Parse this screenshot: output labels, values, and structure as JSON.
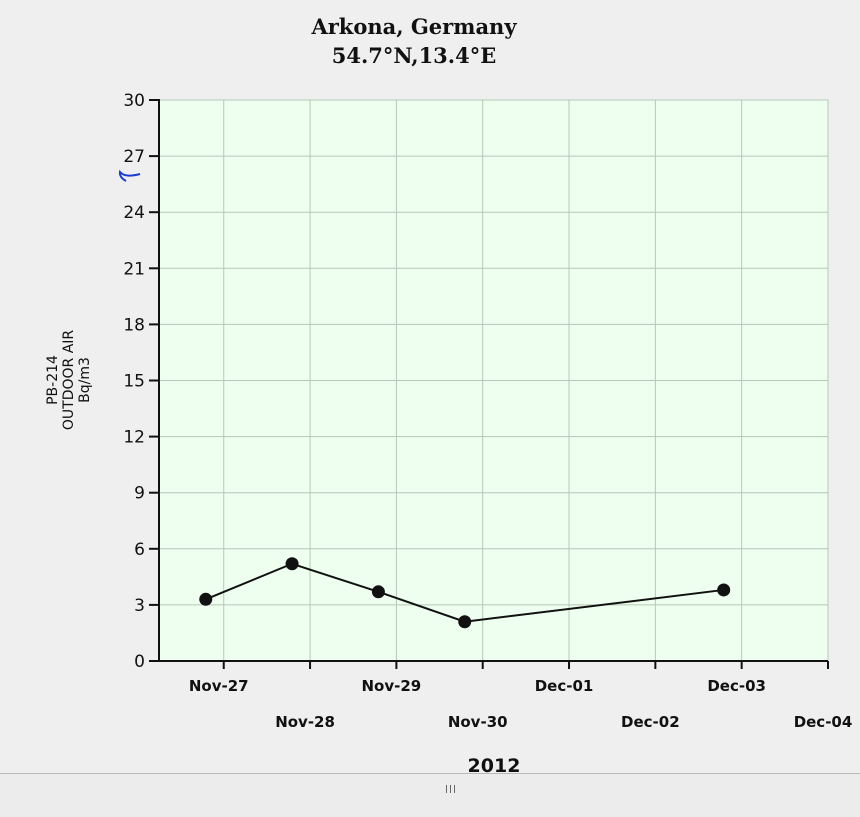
{
  "chart_data": {
    "type": "line",
    "title": "Arkona, Germany",
    "subtitle": "54.7°N,13.4°E",
    "ylabel_lines": [
      "PB-214",
      "OUTDOOR AIR",
      "Bq/m3"
    ],
    "xlabel": "2012",
    "ylim": [
      0,
      30
    ],
    "yticks": [
      0,
      3,
      6,
      9,
      12,
      15,
      18,
      21,
      24,
      27,
      30
    ],
    "xlim": [
      "2012-11-26 06:00",
      "2012-12-04"
    ],
    "xticks": [
      "Nov-27",
      "Nov-28",
      "Nov-29",
      "Nov-30",
      "Dec-01",
      "Dec-02",
      "Dec-03",
      "Dec-04"
    ],
    "grid": true,
    "plot_background": "#efffef",
    "grid_color": "#b4c8b4",
    "line_color": "#111111",
    "series": [
      {
        "x": [
          "2012-11-26 19:00",
          "2012-11-27 19:00",
          "2012-11-28 19:00",
          "2012-11-29 19:00",
          "2012-12-02 19:00"
        ],
        "values": [
          3.3,
          5.2,
          3.7,
          2.1,
          3.8
        ]
      }
    ]
  }
}
